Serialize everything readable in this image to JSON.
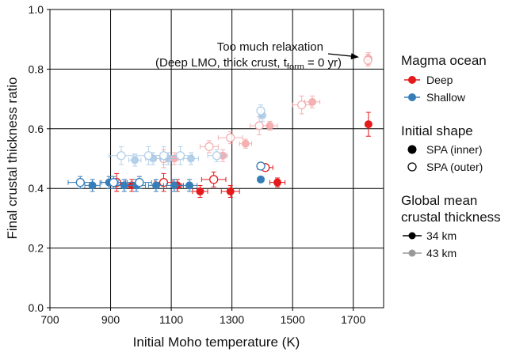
{
  "chart_data": {
    "type": "scatter",
    "xlabel": "Initial Moho temperature (K)",
    "ylabel": "Final crustal thickness ratio",
    "xlim": [
      700,
      1800
    ],
    "ylim": [
      0,
      1
    ],
    "xticks": [
      700,
      900,
      1100,
      1300,
      1500,
      1700
    ],
    "xtick_labels": [
      "700",
      "900",
      "1100",
      "1300",
      "1500",
      "1700"
    ],
    "yticks": [
      0.0,
      0.2,
      0.4,
      0.6,
      0.8,
      1.0
    ],
    "ytick_labels": [
      "0.0",
      "0.2",
      "0.4",
      "0.6",
      "0.8",
      "1.0"
    ],
    "grid": "major",
    "colors": {
      "deep_dark": "#e41a1c",
      "deep_light": "#f4a3a4",
      "shallow_dark": "#377eb8",
      "shallow_light": "#a8c8e6"
    },
    "annotation": {
      "line1": "Too much relaxation",
      "line2_prefix": "(Deep LMO, thick crust, t",
      "line2_sub": "form",
      "line2_suffix": " = 0 yr)",
      "arrow_to": [
        1745,
        0.835
      ]
    },
    "legend": {
      "placement": "right, outside plot",
      "magma_title": "Magma ocean",
      "deep_label": "Deep",
      "shallow_label": "Shallow",
      "shape_title": "Initial shape",
      "inner_label": "SPA (inner)",
      "outer_label": "SPA (outer)",
      "thick_title_line1": "Global mean",
      "thick_title_line2": "crustal thickness",
      "thick34_label": "34 km",
      "thick43_label": "43 km"
    },
    "series": [
      {
        "lmo": "deep",
        "crust": 34,
        "shape": "inner",
        "points": [
          {
            "x": 970,
            "y": 0.41,
            "xerr": 15,
            "yerr": 0.02
          },
          {
            "x": 1120,
            "y": 0.41,
            "xerr": 20,
            "yerr": 0.02
          },
          {
            "x": 1195,
            "y": 0.39,
            "xerr": 25,
            "yerr": 0.02
          },
          {
            "x": 1295,
            "y": 0.39,
            "xerr": 30,
            "yerr": 0.02
          },
          {
            "x": 1450,
            "y": 0.42,
            "xerr": 25,
            "yerr": 0.015
          },
          {
            "x": 1750,
            "y": 0.615,
            "xerr": 10,
            "yerr": 0.04
          }
        ]
      },
      {
        "lmo": "deep",
        "crust": 34,
        "shape": "outer",
        "points": [
          {
            "x": 920,
            "y": 0.42,
            "xerr": 30,
            "yerr": 0.03
          },
          {
            "x": 1075,
            "y": 0.42,
            "xerr": 30,
            "yerr": 0.03
          },
          {
            "x": 1240,
            "y": 0.43,
            "xerr": 40,
            "yerr": 0.025
          },
          {
            "x": 1410,
            "y": 0.47,
            "xerr": 25,
            "yerr": 0.01
          }
        ]
      },
      {
        "lmo": "deep",
        "crust": 43,
        "shape": "inner",
        "points": [
          {
            "x": 1110,
            "y": 0.5,
            "xerr": 15,
            "yerr": 0.02
          },
          {
            "x": 1270,
            "y": 0.51,
            "xerr": 15,
            "yerr": 0.02
          },
          {
            "x": 1345,
            "y": 0.55,
            "xerr": 20,
            "yerr": 0.015
          },
          {
            "x": 1425,
            "y": 0.61,
            "xerr": 25,
            "yerr": 0.015
          },
          {
            "x": 1565,
            "y": 0.69,
            "xerr": 25,
            "yerr": 0.02
          },
          {
            "x": 1750,
            "y": 0.835,
            "xerr": 10,
            "yerr": 0.02
          }
        ]
      },
      {
        "lmo": "deep",
        "crust": 43,
        "shape": "outer",
        "points": [
          {
            "x": 1075,
            "y": 0.5,
            "xerr": 25,
            "yerr": 0.03
          },
          {
            "x": 1225,
            "y": 0.54,
            "xerr": 30,
            "yerr": 0.02
          },
          {
            "x": 1295,
            "y": 0.57,
            "xerr": 40,
            "yerr": 0.02
          },
          {
            "x": 1390,
            "y": 0.61,
            "xerr": 30,
            "yerr": 0.03
          },
          {
            "x": 1530,
            "y": 0.68,
            "xerr": 30,
            "yerr": 0.03
          },
          {
            "x": 1748,
            "y": 0.83,
            "xerr": 10,
            "yerr": 0.02
          }
        ]
      },
      {
        "lmo": "shallow",
        "crust": 34,
        "shape": "inner",
        "points": [
          {
            "x": 840,
            "y": 0.41,
            "xerr": 25,
            "yerr": 0.02
          },
          {
            "x": 895,
            "y": 0.42,
            "xerr": 30,
            "yerr": 0.02
          },
          {
            "x": 945,
            "y": 0.41,
            "xerr": 30,
            "yerr": 0.02
          },
          {
            "x": 985,
            "y": 0.41,
            "xerr": 30,
            "yerr": 0.02
          },
          {
            "x": 1050,
            "y": 0.41,
            "xerr": 25,
            "yerr": 0.02
          },
          {
            "x": 1110,
            "y": 0.41,
            "xerr": 25,
            "yerr": 0.02
          },
          {
            "x": 1160,
            "y": 0.41,
            "xerr": 25,
            "yerr": 0.02
          },
          {
            "x": 1395,
            "y": 0.43,
            "xerr": 10,
            "yerr": 0.01
          }
        ]
      },
      {
        "lmo": "shallow",
        "crust": 34,
        "shape": "outer",
        "points": [
          {
            "x": 800,
            "y": 0.42,
            "xerr": 40,
            "yerr": 0.02
          },
          {
            "x": 910,
            "y": 0.42,
            "xerr": 40,
            "yerr": 0.02
          },
          {
            "x": 995,
            "y": 0.42,
            "xerr": 40,
            "yerr": 0.02
          },
          {
            "x": 1395,
            "y": 0.475,
            "xerr": 10,
            "yerr": 0.01
          }
        ]
      },
      {
        "lmo": "shallow",
        "crust": 43,
        "shape": "inner",
        "points": [
          {
            "x": 980,
            "y": 0.495,
            "xerr": 20,
            "yerr": 0.02
          },
          {
            "x": 1040,
            "y": 0.5,
            "xerr": 25,
            "yerr": 0.02
          },
          {
            "x": 1090,
            "y": 0.5,
            "xerr": 25,
            "yerr": 0.02
          },
          {
            "x": 1165,
            "y": 0.5,
            "xerr": 25,
            "yerr": 0.02
          },
          {
            "x": 1400,
            "y": 0.645,
            "xerr": 10,
            "yerr": 0.02
          }
        ]
      },
      {
        "lmo": "shallow",
        "crust": 43,
        "shape": "outer",
        "points": [
          {
            "x": 935,
            "y": 0.51,
            "xerr": 40,
            "yerr": 0.03
          },
          {
            "x": 1025,
            "y": 0.51,
            "xerr": 40,
            "yerr": 0.03
          },
          {
            "x": 1075,
            "y": 0.51,
            "xerr": 40,
            "yerr": 0.03
          },
          {
            "x": 1130,
            "y": 0.51,
            "xerr": 40,
            "yerr": 0.03
          },
          {
            "x": 1250,
            "y": 0.51,
            "xerr": 30,
            "yerr": 0.02
          },
          {
            "x": 1395,
            "y": 0.66,
            "xerr": 10,
            "yerr": 0.02
          }
        ]
      }
    ]
  }
}
